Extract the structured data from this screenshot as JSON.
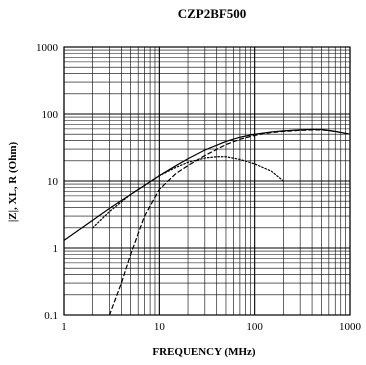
{
  "chart_data": {
    "type": "line",
    "title": "CZP2BF500",
    "xlabel": "FREQUENCY (MHz)",
    "ylabel": "|Z|, XL, R (Ohm)",
    "x_scale": "log",
    "y_scale": "log",
    "xlim": [
      1,
      1000
    ],
    "ylim": [
      0.1,
      1000
    ],
    "grid": true,
    "x_ticks": [
      "1",
      "10",
      "100",
      "1000"
    ],
    "y_ticks": [
      "0.1",
      "1",
      "10",
      "100",
      "1000"
    ],
    "series": [
      {
        "style": "solid",
        "x": [
          1,
          2,
          3,
          5,
          7,
          10,
          15,
          20,
          30,
          50,
          70,
          100,
          150,
          200,
          300,
          400,
          500,
          700,
          1000
        ],
        "y": [
          1.3,
          2.6,
          3.9,
          6.3,
          8.6,
          12,
          17,
          21.5,
          29,
          39,
          45,
          50,
          54,
          56,
          58,
          59,
          59,
          55,
          50
        ]
      },
      {
        "style": "dashed",
        "x": [
          3,
          4,
          5,
          7,
          10,
          15,
          20,
          30,
          50,
          70,
          100,
          150,
          200,
          300,
          400,
          500,
          700,
          1000
        ],
        "y": [
          0.1,
          0.3,
          0.8,
          3,
          7.5,
          13,
          17,
          24,
          35,
          42,
          48,
          53,
          55,
          57,
          58,
          58,
          55,
          50
        ]
      },
      {
        "style": "dotted",
        "x": [
          2,
          3,
          5,
          7,
          10,
          15,
          20,
          30,
          40,
          50,
          70,
          100,
          150,
          200
        ],
        "y": [
          2,
          3.5,
          6.3,
          8.6,
          12,
          16,
          19,
          22,
          23,
          23,
          21,
          18,
          14,
          10
        ]
      }
    ]
  }
}
